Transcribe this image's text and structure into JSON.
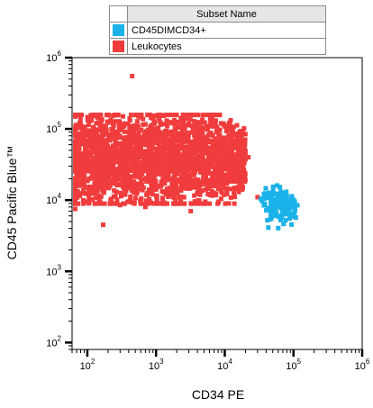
{
  "chart_data": {
    "type": "scatter",
    "xlabel": "CD34 PE",
    "ylabel": "CD45 Pacific Blue™",
    "xscale": "log",
    "yscale": "log",
    "xlim": [
      60,
      1000000
    ],
    "ylim": [
      80,
      1000000
    ],
    "grid": false,
    "x_ticks": [
      {
        "base": "10",
        "exp": "2",
        "value": 100
      },
      {
        "base": "10",
        "exp": "3",
        "value": 1000
      },
      {
        "base": "10",
        "exp": "4",
        "value": 10000
      },
      {
        "base": "10",
        "exp": "5",
        "value": 100000
      },
      {
        "base": "10",
        "exp": "6",
        "value": 1000000
      }
    ],
    "y_ticks": [
      {
        "base": "10",
        "exp": "2",
        "value": 100
      },
      {
        "base": "10",
        "exp": "3",
        "value": 1000
      },
      {
        "base": "10",
        "exp": "4",
        "value": 10000
      },
      {
        "base": "10",
        "exp": "5",
        "value": 100000
      },
      {
        "base": "10",
        "exp": "6",
        "value": 1000000
      }
    ],
    "legend": {
      "header": "Subset Name",
      "placement": "top",
      "entries": [
        {
          "name": "CD45DIMCD34+",
          "color": "#1ab2e8"
        },
        {
          "name": "Leukocytes",
          "color": "#f03c3c"
        }
      ]
    },
    "series": [
      {
        "name": "Leukocytes",
        "color": "#f03c3c",
        "clusters": [
          {
            "x_range": [
              60,
              20000
            ],
            "y_range": [
              10000,
              150000
            ],
            "count": 2400
          }
        ],
        "outliers": [
          [
            450,
            550000
          ],
          [
            1400,
            12000
          ],
          [
            3200,
            7000
          ],
          [
            170,
            4500
          ],
          [
            60,
            7500
          ],
          [
            100,
            9500
          ],
          [
            300,
            8500
          ],
          [
            700,
            8000
          ],
          [
            1800,
            9000
          ],
          [
            5200,
            9500
          ],
          [
            9000,
            17000
          ],
          [
            16000,
            13000
          ],
          [
            22000,
            40000
          ],
          [
            30000,
            11000
          ],
          [
            105,
            9000
          ]
        ]
      },
      {
        "name": "CD45DIMCD34+",
        "color": "#1ab2e8",
        "clusters": [
          {
            "center": [
              65000,
              8500
            ],
            "log_spread": [
              0.12,
              0.12
            ],
            "count": 160
          }
        ],
        "outliers": []
      }
    ]
  }
}
